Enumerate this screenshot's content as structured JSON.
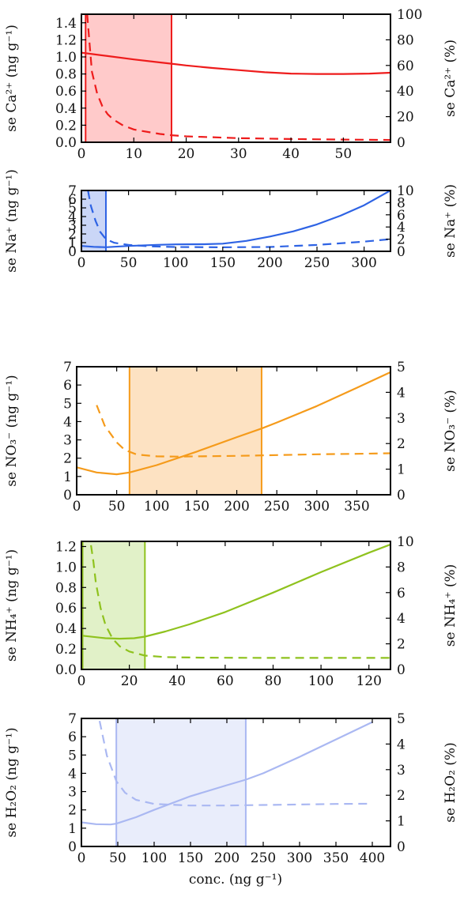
{
  "figure": {
    "xlabel": "conc. (ng g⁻¹)"
  },
  "chart_data": [
    {
      "type": "line",
      "color": "#ee1c1c",
      "fill": "#ffcaca",
      "ylabel_left": "se Ca²⁺ (ng g⁻¹)",
      "ylabel_right": "se Ca²⁺ (%)",
      "xlim": [
        0,
        59
      ],
      "ylim_left": [
        0,
        1.5
      ],
      "ylim_right": [
        0,
        100
      ],
      "xticks": [
        0,
        10,
        20,
        30,
        40,
        50
      ],
      "yticks_left": [
        "0.0",
        "0.2",
        "0.4",
        "0.6",
        "0.8",
        "1.0",
        "1.2",
        "1.4"
      ],
      "yticks_right": [
        "0",
        "20",
        "40",
        "60",
        "80",
        "100"
      ],
      "span": [
        0.8,
        17.2
      ],
      "series": [
        {
          "style": "solid",
          "axis": "left",
          "x": [
            0,
            5,
            10,
            15,
            17.2,
            20,
            25,
            30,
            35,
            40,
            45,
            50,
            55,
            59
          ],
          "y": [
            1.05,
            1.01,
            0.97,
            0.935,
            0.92,
            0.9,
            0.87,
            0.845,
            0.82,
            0.805,
            0.8,
            0.8,
            0.805,
            0.815
          ]
        },
        {
          "style": "dashed",
          "axis": "right",
          "x": [
            1.1,
            1.5,
            2,
            3,
            4,
            5,
            6,
            8,
            10,
            12,
            15,
            17.2,
            20,
            30,
            40,
            50,
            59
          ],
          "y": [
            100,
            80,
            55,
            38,
            28,
            22,
            18,
            13,
            10,
            8.5,
            6.5,
            5.5,
            4.6,
            3.2,
            2.5,
            2.1,
            1.8
          ]
        }
      ]
    },
    {
      "type": "line",
      "color": "#2e63e4",
      "fill": "#cad6f7",
      "ylabel_left": "se Na⁺ (ng g⁻¹)",
      "ylabel_right": "se Na⁺ (%)",
      "xlim": [
        0,
        328
      ],
      "ylim_left": [
        0,
        7
      ],
      "ylim_right": [
        0,
        10
      ],
      "xticks": [
        0,
        50,
        100,
        150,
        200,
        250,
        300
      ],
      "yticks_left": [
        "0",
        "1",
        "2",
        "3",
        "4",
        "5",
        "6",
        "7"
      ],
      "yticks_right": [
        "0",
        "2",
        "4",
        "6",
        "8",
        "10"
      ],
      "span": [
        0,
        26
      ],
      "series": [
        {
          "style": "solid",
          "axis": "left",
          "x": [
            0,
            13,
            26,
            50,
            80,
            100,
            130,
            150,
            175,
            200,
            225,
            250,
            275,
            300,
            328
          ],
          "y": [
            0.62,
            0.52,
            0.47,
            0.62,
            0.75,
            0.8,
            0.82,
            0.88,
            1.2,
            1.7,
            2.3,
            3.1,
            4.1,
            5.3,
            7.0
          ]
        },
        {
          "style": "dashed",
          "axis": "right",
          "x": [
            7,
            10,
            15,
            20,
            26,
            35,
            50,
            75,
            100,
            150,
            200,
            250,
            300,
            328
          ],
          "y": [
            10.0,
            7.5,
            5.0,
            3.2,
            2.0,
            1.4,
            1.05,
            0.8,
            0.72,
            0.66,
            0.72,
            1.05,
            1.6,
            2.0
          ]
        }
      ]
    },
    {
      "type": "line",
      "color": "#f59b1b",
      "fill": "#fde2c2",
      "ylabel_left": "se NO₃⁻ (ng g⁻¹)",
      "ylabel_right": "se NO₃⁻ (%)",
      "xlim": [
        0,
        392
      ],
      "ylim_left": [
        0,
        7
      ],
      "ylim_right": [
        0,
        5
      ],
      "xticks": [
        0,
        50,
        100,
        150,
        200,
        250,
        300,
        350
      ],
      "yticks_left": [
        "0",
        "1",
        "2",
        "3",
        "4",
        "5",
        "6",
        "7"
      ],
      "yticks_right": [
        "0",
        "1",
        "2",
        "3",
        "4",
        "5"
      ],
      "span": [
        66,
        231
      ],
      "series": [
        {
          "style": "solid",
          "axis": "left",
          "x": [
            0,
            25,
            50,
            66,
            100,
            150,
            200,
            231,
            250,
            300,
            350,
            392
          ],
          "y": [
            1.5,
            1.22,
            1.12,
            1.22,
            1.62,
            2.36,
            3.15,
            3.62,
            3.95,
            4.85,
            5.85,
            6.7
          ]
        },
        {
          "style": "dashed",
          "axis": "right",
          "x": [
            25,
            35,
            50,
            60,
            75,
            100,
            125,
            150,
            200,
            250,
            300,
            350,
            392
          ],
          "y": [
            3.5,
            2.7,
            2.05,
            1.75,
            1.57,
            1.5,
            1.49,
            1.5,
            1.52,
            1.55,
            1.58,
            1.6,
            1.62
          ]
        }
      ]
    },
    {
      "type": "line",
      "color": "#8fc21e",
      "fill": "#e1f1c8",
      "ylabel_left": "se NH₄⁺ (ng g⁻¹)",
      "ylabel_right": "se NH₄⁺ (%)",
      "xlim": [
        0,
        129
      ],
      "ylim_left": [
        0,
        1.25
      ],
      "ylim_right": [
        0,
        10
      ],
      "xticks": [
        0,
        20,
        40,
        60,
        80,
        100,
        120
      ],
      "yticks_left": [
        "0.0",
        "0.2",
        "0.4",
        "0.6",
        "0.8",
        "1.0",
        "1.2"
      ],
      "yticks_right": [
        "0",
        "2",
        "4",
        "6",
        "8",
        "10"
      ],
      "span": [
        0.5,
        26.5
      ],
      "series": [
        {
          "style": "solid",
          "axis": "left",
          "x": [
            0,
            10,
            16,
            22,
            26.5,
            35,
            45,
            60,
            80,
            100,
            120,
            129
          ],
          "y": [
            0.33,
            0.305,
            0.3,
            0.305,
            0.32,
            0.37,
            0.44,
            0.56,
            0.75,
            0.95,
            1.14,
            1.22
          ]
        },
        {
          "style": "dashed",
          "axis": "right",
          "x": [
            4,
            5,
            6,
            8,
            10,
            13,
            16,
            20,
            26.5,
            35,
            50,
            80,
            100,
            129
          ],
          "y": [
            9.7,
            8.4,
            6.8,
            4.8,
            3.5,
            2.4,
            1.8,
            1.4,
            1.08,
            0.96,
            0.92,
            0.9,
            0.9,
            0.9
          ]
        }
      ]
    },
    {
      "type": "line",
      "color": "#aab8f2",
      "fill": "#e9edfb",
      "ylabel_left": "se H₂O₂ (ng g⁻¹)",
      "ylabel_right": "se H₂O₂ (%)",
      "xlim": [
        0,
        425
      ],
      "ylim_left": [
        0,
        7
      ],
      "ylim_right": [
        0,
        5
      ],
      "xticks": [
        0,
        50,
        100,
        150,
        200,
        250,
        300,
        350,
        400
      ],
      "yticks_left": [
        "0",
        "1",
        "2",
        "3",
        "4",
        "5",
        "6",
        "7"
      ],
      "yticks_right": [
        "0",
        "1",
        "2",
        "3",
        "4",
        "5"
      ],
      "span": [
        48,
        226
      ],
      "series": [
        {
          "style": "solid",
          "axis": "left",
          "x": [
            0,
            20,
            40,
            48,
            75,
            100,
            150,
            200,
            226,
            250,
            300,
            350,
            400
          ],
          "y": [
            1.32,
            1.22,
            1.2,
            1.25,
            1.6,
            2.0,
            2.75,
            3.35,
            3.65,
            4.0,
            4.9,
            5.85,
            6.8
          ]
        },
        {
          "style": "dashed",
          "axis": "right",
          "x": [
            25,
            35,
            48,
            60,
            75,
            100,
            150,
            200,
            226,
            250,
            300,
            350,
            400
          ],
          "y": [
            4.9,
            3.55,
            2.55,
            2.1,
            1.82,
            1.66,
            1.6,
            1.6,
            1.61,
            1.62,
            1.64,
            1.66,
            1.67
          ]
        }
      ]
    }
  ]
}
